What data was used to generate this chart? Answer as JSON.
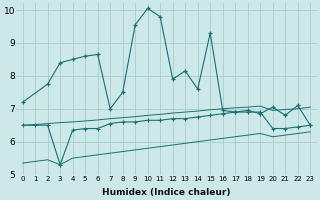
{
  "xlabel": "Humidex (Indice chaleur)",
  "bg_color": "#cce8e8",
  "grid_color": "#aacccc",
  "line_color": "#1a7070",
  "xlim": [
    -0.5,
    23.5
  ],
  "ylim": [
    5.0,
    10.2
  ],
  "xticks": [
    0,
    1,
    2,
    3,
    4,
    5,
    6,
    7,
    8,
    9,
    10,
    11,
    12,
    13,
    14,
    15,
    16,
    17,
    18,
    19,
    20,
    21,
    22,
    23
  ],
  "yticks": [
    5,
    6,
    7,
    8,
    9,
    10
  ],
  "series1_x": [
    0,
    2,
    3,
    4,
    5,
    6,
    7,
    8,
    9,
    10,
    11,
    12,
    13,
    14,
    15,
    16,
    17,
    18,
    19,
    20,
    21,
    22,
    23
  ],
  "series1_y": [
    7.2,
    7.75,
    8.4,
    8.5,
    8.6,
    8.65,
    7.0,
    7.5,
    9.55,
    10.05,
    9.8,
    7.9,
    8.15,
    7.6,
    9.3,
    6.95,
    6.9,
    6.95,
    6.85,
    7.05,
    6.8,
    7.1,
    6.5
  ],
  "series2_x": [
    0,
    1,
    2,
    3,
    4,
    5,
    6,
    7,
    8,
    9,
    10,
    11,
    12,
    13,
    14,
    15,
    16,
    17,
    18,
    19,
    20,
    21,
    22,
    23
  ],
  "series2_y": [
    6.5,
    6.5,
    6.5,
    5.3,
    6.35,
    6.4,
    6.4,
    6.55,
    6.6,
    6.6,
    6.65,
    6.65,
    6.7,
    6.7,
    6.75,
    6.8,
    6.85,
    6.9,
    6.9,
    6.9,
    6.4,
    6.4,
    6.45,
    6.5
  ],
  "series3_x": [
    0,
    1,
    2,
    3,
    4,
    5,
    6,
    7,
    8,
    9,
    10,
    11,
    12,
    13,
    14,
    15,
    16,
    17,
    18,
    19,
    20,
    21,
    22,
    23
  ],
  "series3_y": [
    5.35,
    5.4,
    5.45,
    5.3,
    5.5,
    5.55,
    5.6,
    5.65,
    5.7,
    5.75,
    5.8,
    5.85,
    5.9,
    5.95,
    6.0,
    6.05,
    6.1,
    6.15,
    6.2,
    6.25,
    6.15,
    6.2,
    6.25,
    6.3
  ],
  "series4_x": [
    0,
    1,
    2,
    3,
    4,
    5,
    6,
    7,
    8,
    9,
    10,
    11,
    12,
    13,
    14,
    15,
    16,
    17,
    18,
    19,
    20,
    21,
    22,
    23
  ],
  "series4_y": [
    6.5,
    6.52,
    6.55,
    6.58,
    6.6,
    6.63,
    6.66,
    6.7,
    6.73,
    6.76,
    6.8,
    6.83,
    6.87,
    6.9,
    6.93,
    6.97,
    7.0,
    7.03,
    7.05,
    7.08,
    6.95,
    6.98,
    7.0,
    7.05
  ]
}
